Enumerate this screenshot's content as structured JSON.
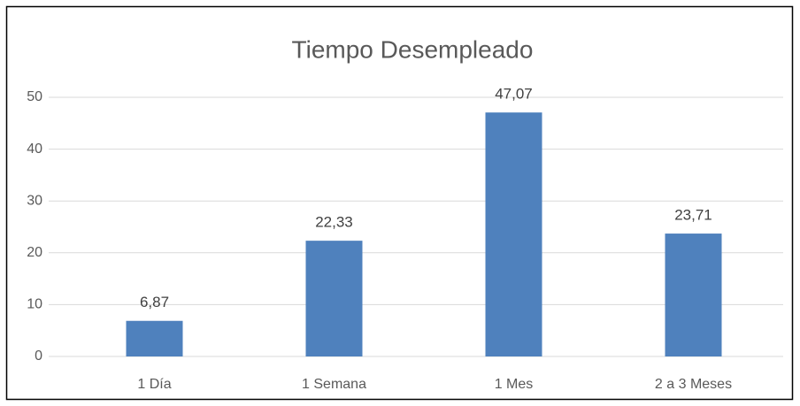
{
  "chart_data": {
    "type": "bar",
    "title": "Tiempo Desempleado",
    "categories": [
      "1 Día",
      "1 Semana",
      "1 Mes",
      "2 a 3 Meses"
    ],
    "values": [
      6.87,
      22.33,
      47.07,
      23.71
    ],
    "value_labels": [
      "6,87",
      "22,33",
      "47,07",
      "23,71"
    ],
    "color": "#4f81bd",
    "ylim": [
      0,
      50
    ],
    "yticks": [
      0,
      10,
      20,
      30,
      40,
      50
    ],
    "grid": true
  }
}
